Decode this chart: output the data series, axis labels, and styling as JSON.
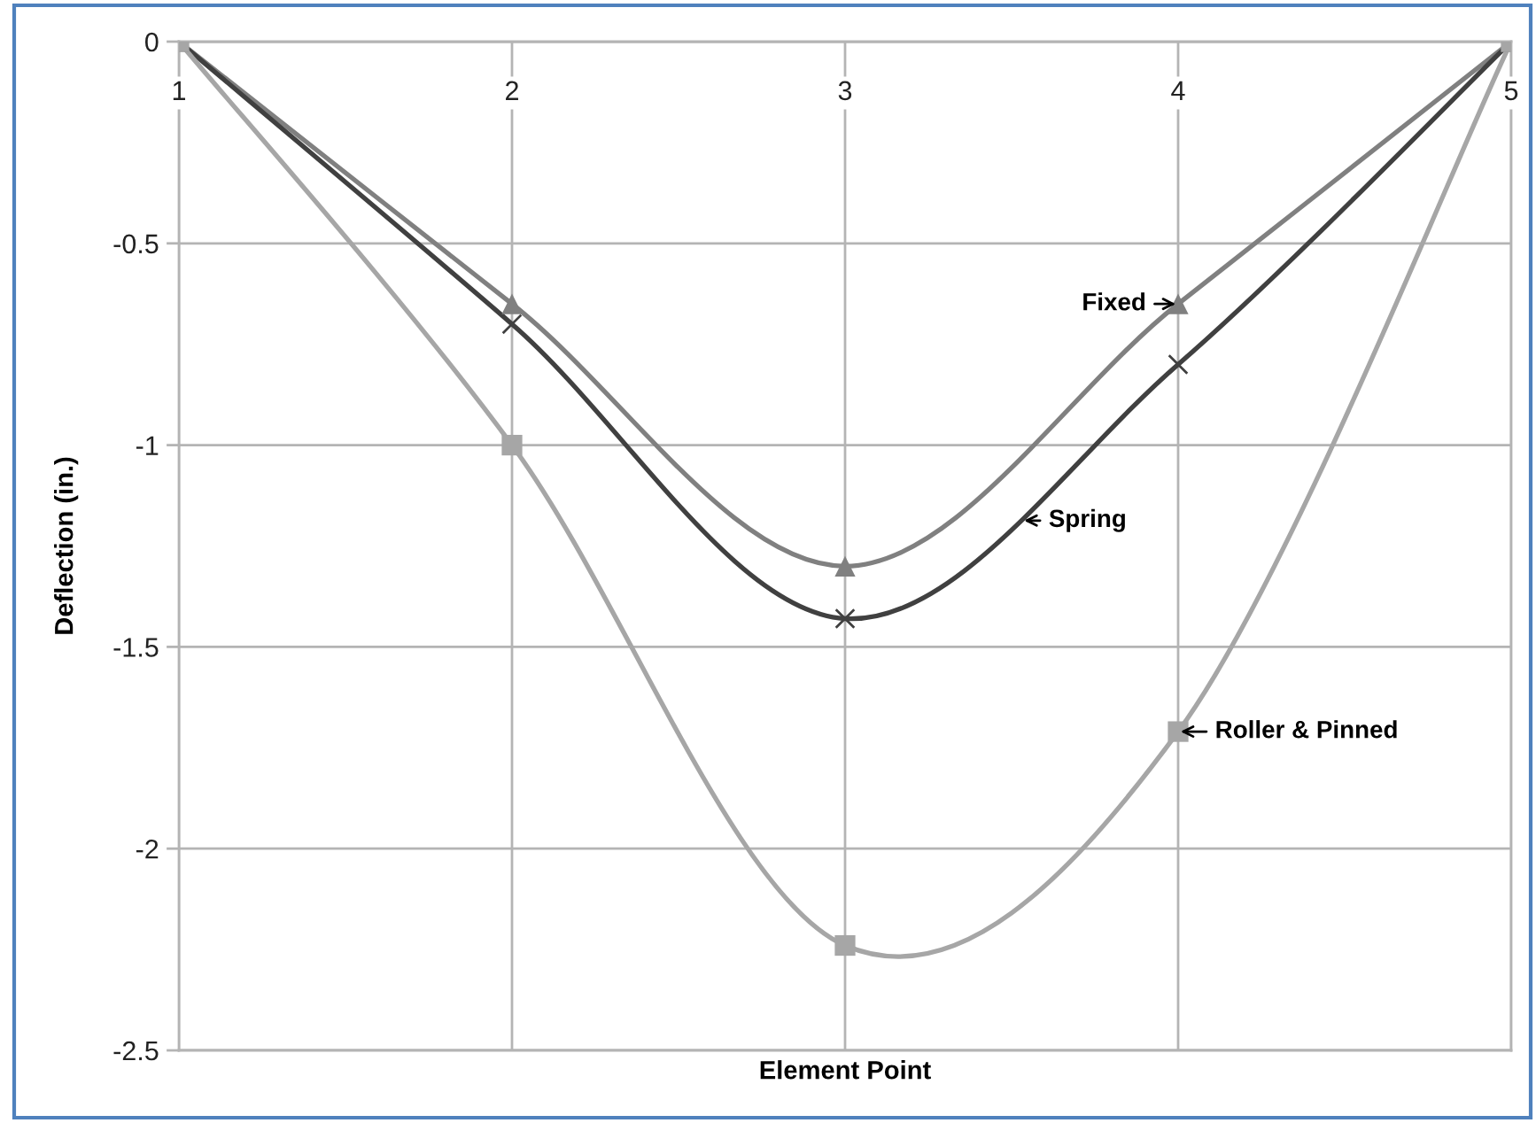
{
  "chart_data": {
    "type": "line",
    "xlabel": "Element Point",
    "ylabel": "Deflection (in.)",
    "x": [
      1,
      2,
      3,
      4,
      5
    ],
    "xlim": [
      1,
      5
    ],
    "xticks": [
      1,
      2,
      3,
      4,
      5
    ],
    "ylim": [
      -2.5,
      0
    ],
    "yticks": [
      -2.5,
      -2,
      -1.5,
      -1,
      -0.5,
      0
    ],
    "grid": true,
    "series": [
      {
        "name": "Fixed",
        "color": "#808080",
        "marker": "triangle",
        "values": [
          0,
          -0.65,
          -1.3,
          -0.65,
          0
        ]
      },
      {
        "name": "Spring",
        "color": "#404040",
        "marker": "cross",
        "values": [
          0,
          -0.7,
          -1.43,
          -0.8,
          0
        ]
      },
      {
        "name": "Roller & Pinned",
        "color": "#a6a6a6",
        "marker": "square",
        "values": [
          0,
          -1.0,
          -2.24,
          -1.71,
          0
        ]
      }
    ]
  }
}
